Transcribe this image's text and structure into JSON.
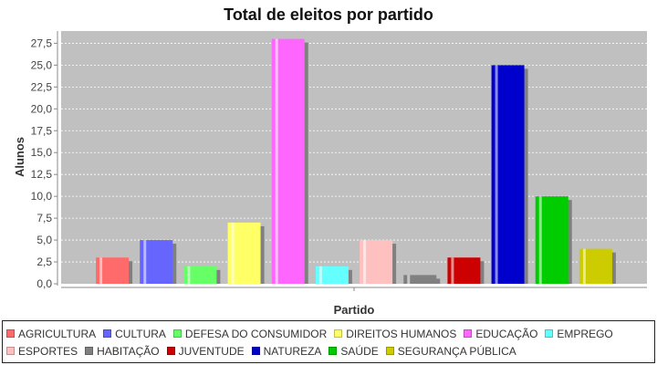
{
  "chart_data": {
    "type": "bar",
    "title": "Total de eleitos por partido",
    "xlabel": "Partido",
    "ylabel": "Alunos",
    "ylim": [
      0,
      28.9
    ],
    "yticks": [
      "0,0",
      "2,5",
      "5,0",
      "7,5",
      "10,0",
      "12,5",
      "15,0",
      "17,5",
      "20,0",
      "22,5",
      "25,0",
      "27,5"
    ],
    "grid": true,
    "legend_position": "bottom",
    "series": [
      {
        "name": "AGRICULTURA",
        "value": 3,
        "color": "#ff6b6b"
      },
      {
        "name": "CULTURA",
        "value": 5,
        "color": "#6666ff"
      },
      {
        "name": "DEFESA DO CONSUMIDOR",
        "value": 2,
        "color": "#66ff66"
      },
      {
        "name": "DIREITOS HUMANOS",
        "value": 7,
        "color": "#ffff66"
      },
      {
        "name": "EDUCAÇÃO",
        "value": 28,
        "color": "#ff66ff"
      },
      {
        "name": "EMPREGO",
        "value": 2,
        "color": "#66ffff"
      },
      {
        "name": "ESPORTES",
        "value": 5,
        "color": "#ffc0c0"
      },
      {
        "name": "HABITAÇÃO",
        "value": 1,
        "color": "#808080"
      },
      {
        "name": "JUVENTUDE",
        "value": 3,
        "color": "#cc0000"
      },
      {
        "name": "NATUREZA",
        "value": 25,
        "color": "#0000cc"
      },
      {
        "name": "SAÚDE",
        "value": 10,
        "color": "#00cc00"
      },
      {
        "name": "SEGURANÇA PÚBLICA",
        "value": 4,
        "color": "#cccc00"
      }
    ]
  }
}
